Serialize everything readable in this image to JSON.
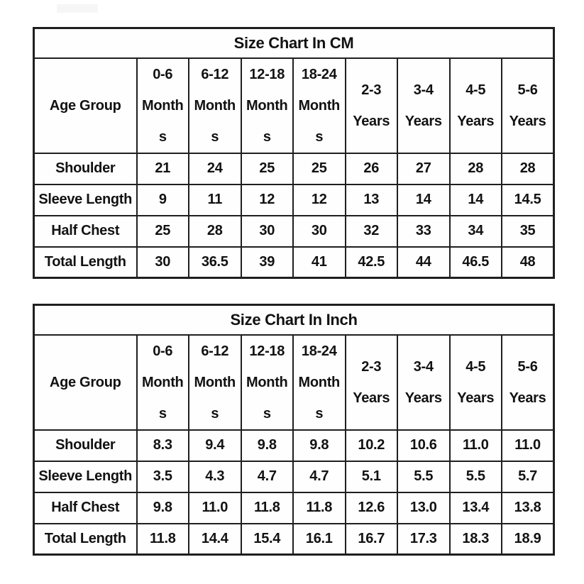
{
  "colors": {
    "border": "#1f1f1f",
    "text": "#121212",
    "background": "#ffffff"
  },
  "chart_data": [
    {
      "type": "table",
      "title": "Size Chart In CM",
      "columns": [
        "Age Group",
        "0-6 Months",
        "6-12 Months",
        "12-18 Months",
        "18-24 Months",
        "2-3 Years",
        "3-4 Years",
        "4-5 Years",
        "5-6 Years"
      ],
      "rows": [
        [
          "Shoulder",
          "21",
          "24",
          "25",
          "25",
          "26",
          "27",
          "28",
          "28"
        ],
        [
          "Sleeve Length",
          "9",
          "11",
          "12",
          "12",
          "13",
          "14",
          "14",
          "14.5"
        ],
        [
          "Half Chest",
          "25",
          "28",
          "30",
          "30",
          "32",
          "33",
          "34",
          "35"
        ],
        [
          "Total Length",
          "30",
          "36.5",
          "39",
          "41",
          "42.5",
          "44",
          "46.5",
          "48"
        ]
      ]
    },
    {
      "type": "table",
      "title": "Size Chart In Inch",
      "columns": [
        "Age Group",
        "0-6 Months",
        "6-12 Months",
        "12-18 Months",
        "18-24 Months",
        "2-3 Years",
        "3-4 Years",
        "4-5 Years",
        "5-6 Years"
      ],
      "rows": [
        [
          "Shoulder",
          "8.3",
          "9.4",
          "9.8",
          "9.8",
          "10.2",
          "10.6",
          "11.0",
          "11.0"
        ],
        [
          "Sleeve Length",
          "3.5",
          "4.3",
          "4.7",
          "4.7",
          "5.1",
          "5.5",
          "5.5",
          "5.7"
        ],
        [
          "Half Chest",
          "9.8",
          "11.0",
          "11.8",
          "11.8",
          "12.6",
          "13.0",
          "13.4",
          "13.8"
        ],
        [
          "Total Length",
          "11.8",
          "14.4",
          "15.4",
          "16.1",
          "16.7",
          "17.3",
          "18.3",
          "18.9"
        ]
      ]
    }
  ],
  "render": {
    "column_display": [
      "0-6\nMonth\ns",
      "6-12\nMonth\ns",
      "12-18\nMonth\ns",
      "18-24\nMonth\ns",
      "2-3\nYears",
      "3-4\nYears",
      "4-5\nYears",
      "5-6\nYears"
    ]
  }
}
